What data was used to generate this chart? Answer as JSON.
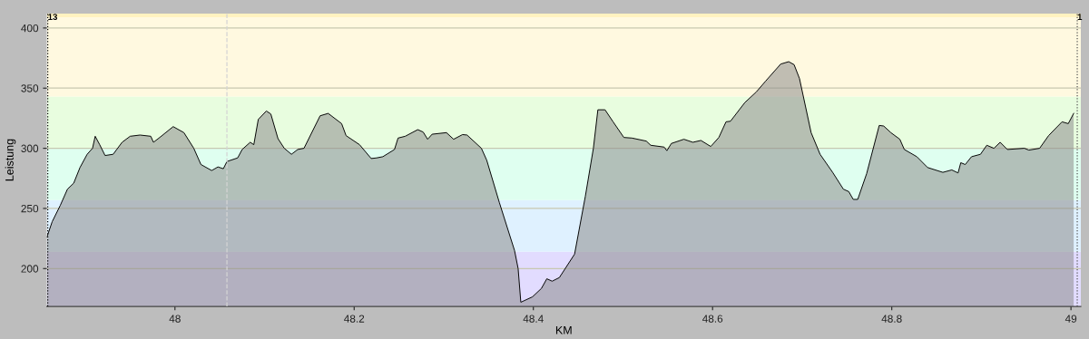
{
  "chart_data": {
    "type": "area",
    "xlabel": "KM",
    "ylabel": "Leistung",
    "xlim": [
      47.857,
      49.011
    ],
    "ylim": [
      168.5,
      412
    ],
    "xticks": [
      48,
      48.2,
      48.4,
      48.6,
      48.8,
      49
    ],
    "yticks": [
      200,
      250,
      300,
      350,
      400
    ],
    "grid": "y",
    "legend": false,
    "bands": [
      {
        "axis": "y",
        "from": 168.5,
        "to": 214,
        "color": "#e2dcff"
      },
      {
        "axis": "y",
        "from": 214,
        "to": 257,
        "color": "#dff1ff"
      },
      {
        "axis": "y",
        "from": 257,
        "to": 300,
        "color": "#dffff0"
      },
      {
        "axis": "y",
        "from": 300,
        "to": 343,
        "color": "#e8fddf"
      },
      {
        "axis": "y",
        "from": 343,
        "to": 409,
        "color": "#fff9e0"
      },
      {
        "axis": "y",
        "from": 409,
        "to": 412,
        "color": "#fff2c0"
      }
    ],
    "annotations": [
      {
        "text": "13",
        "x": 47.858,
        "y": 412
      },
      {
        "text": "1",
        "x": 49.007,
        "y": 412
      }
    ],
    "ref_lines": [
      {
        "axis": "x",
        "value": 47.858,
        "color": "#000000",
        "line_style": "dotted"
      },
      {
        "axis": "x",
        "value": 48.058,
        "color": "#d4d4d4",
        "line_style": "dashed"
      },
      {
        "axis": "x",
        "value": 49.007,
        "color": "#555555",
        "line_style": "dotted"
      }
    ],
    "series": [
      {
        "color": "#8c8c8c",
        "x": [
          47.857,
          47.863,
          47.872,
          47.88,
          47.887,
          47.894,
          47.902,
          47.908,
          47.911,
          47.916,
          47.922,
          47.931,
          47.941,
          47.95,
          47.961,
          47.973,
          47.976,
          47.983,
          47.998,
          48.01,
          48.021,
          48.029,
          48.041,
          48.048,
          48.054,
          48.058,
          48.07,
          48.075,
          48.084,
          48.088,
          48.093,
          48.102,
          48.107,
          48.115,
          48.122,
          48.13,
          48.137,
          48.144,
          48.162,
          48.171,
          48.186,
          48.191,
          48.206,
          48.219,
          48.225,
          48.232,
          48.245,
          48.249,
          48.257,
          48.271,
          48.277,
          48.282,
          48.287,
          48.303,
          48.311,
          48.321,
          48.326,
          48.342,
          48.348,
          48.362,
          48.379,
          48.383,
          48.386,
          48.399,
          48.409,
          48.415,
          48.421,
          48.429,
          48.446,
          48.458,
          48.467,
          48.472,
          48.48,
          48.489,
          48.501,
          48.51,
          48.526,
          48.531,
          48.546,
          48.549,
          48.554,
          48.568,
          48.578,
          48.587,
          48.598,
          48.607,
          48.615,
          48.62,
          48.636,
          48.649,
          48.659,
          48.676,
          48.685,
          48.691,
          48.697,
          48.71,
          48.72,
          48.734,
          48.746,
          48.752,
          48.757,
          48.762,
          48.772,
          48.786,
          48.791,
          48.799,
          48.809,
          48.814,
          48.828,
          48.84,
          48.857,
          48.867,
          48.874,
          48.877,
          48.882,
          48.889,
          48.899,
          48.906,
          48.914,
          48.921,
          48.929,
          48.948,
          48.953,
          48.965,
          48.975,
          48.99,
          48.997,
          49.003
        ],
        "values": [
          226,
          239,
          252.5,
          266,
          271,
          284,
          295,
          300,
          310,
          303,
          294,
          295,
          305,
          310,
          311,
          310,
          305,
          309,
          318,
          313,
          300,
          286.5,
          281.5,
          284.5,
          283,
          289,
          292,
          299,
          305,
          303,
          324,
          331,
          328.5,
          308,
          300,
          295,
          299,
          300,
          327,
          329,
          320.5,
          310.5,
          303,
          291.5,
          292,
          293,
          299,
          308.5,
          310,
          315.5,
          313.5,
          307.5,
          311.7,
          313,
          307.5,
          311.4,
          311,
          300,
          290,
          255,
          215,
          200,
          172,
          176.5,
          183.5,
          191.5,
          189.5,
          192.5,
          212,
          260,
          300,
          332,
          332,
          322,
          309,
          308.5,
          306,
          302.5,
          301,
          298,
          304,
          307.5,
          305,
          306.5,
          301.5,
          309,
          322,
          322.5,
          338,
          347,
          355.7,
          370,
          372,
          369.5,
          358,
          313,
          295,
          280,
          266,
          264,
          257.5,
          257.5,
          279,
          319,
          318.5,
          313,
          307.5,
          299,
          293,
          284,
          280,
          282,
          279.5,
          288,
          286.5,
          293,
          295,
          302.5,
          300,
          305,
          299,
          300,
          298.5,
          300,
          310.5,
          322,
          320.5,
          329
        ]
      }
    ]
  }
}
